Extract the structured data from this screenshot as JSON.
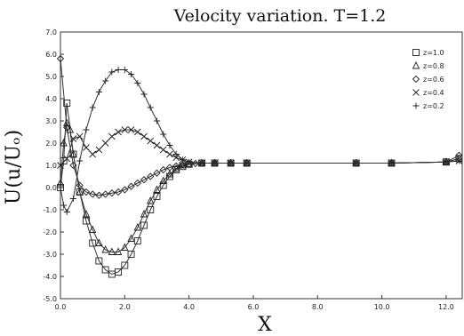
{
  "chart_data": {
    "type": "line",
    "title": "Velocity variation. T=1.2",
    "xlabel": "X",
    "ylabel": "U(u/Uₒ)",
    "xlim": [
      0,
      12.5
    ],
    "ylim": [
      -5,
      7
    ],
    "xticks": [
      0,
      2,
      4,
      6,
      8,
      10,
      12
    ],
    "xtick_labels": [
      "0.0",
      "2.0",
      "4.0",
      "6.0",
      "8.0",
      "10.0",
      "12.0"
    ],
    "yticks": [
      -5,
      -4,
      -3,
      -2,
      -1,
      0,
      1,
      2,
      3,
      4,
      5,
      6,
      7
    ],
    "ytick_labels": [
      "-5.0",
      "-4.0",
      "-3.0",
      "-2.0",
      "-1.0",
      "0.0",
      "1.0",
      "2.0",
      "3.0",
      "4.0",
      "5.0",
      "6.0",
      "7.0"
    ],
    "grid": false,
    "legend_position": "top-right",
    "series": [
      {
        "name": "z=1.0",
        "marker": "square",
        "x": [
          0.0,
          0.1,
          0.2,
          0.4,
          0.6,
          0.8,
          1.0,
          1.2,
          1.4,
          1.6,
          1.8,
          2.0,
          2.2,
          2.4,
          2.6,
          2.8,
          3.0,
          3.2,
          3.4,
          3.6,
          3.8,
          4.0,
          4.4,
          4.8,
          5.3,
          5.8,
          9.2,
          10.3,
          12.0,
          12.4
        ],
        "y": [
          0.0,
          1.2,
          3.8,
          1.5,
          -0.2,
          -1.5,
          -2.5,
          -3.3,
          -3.7,
          -3.9,
          -3.8,
          -3.5,
          -3.0,
          -2.4,
          -1.7,
          -1.0,
          -0.4,
          0.1,
          0.5,
          0.8,
          0.95,
          1.05,
          1.1,
          1.1,
          1.1,
          1.1,
          1.1,
          1.1,
          1.15,
          1.3
        ]
      },
      {
        "name": "z=0.8",
        "marker": "triangle",
        "x": [
          0.0,
          0.1,
          0.2,
          0.3,
          0.4,
          0.6,
          0.8,
          1.0,
          1.2,
          1.4,
          1.6,
          1.8,
          2.0,
          2.2,
          2.4,
          2.6,
          2.8,
          3.0,
          3.2,
          3.4,
          3.6,
          3.8,
          4.0,
          4.4,
          4.8,
          5.3,
          5.8,
          9.2,
          10.3,
          12.0,
          12.4
        ],
        "y": [
          0.2,
          2.0,
          2.9,
          2.6,
          1.5,
          -0.2,
          -1.2,
          -1.9,
          -2.5,
          -2.8,
          -2.9,
          -2.9,
          -2.7,
          -2.3,
          -1.8,
          -1.2,
          -0.6,
          -0.1,
          0.3,
          0.6,
          0.85,
          1.0,
          1.05,
          1.1,
          1.1,
          1.1,
          1.1,
          1.1,
          1.1,
          1.15,
          1.3
        ]
      },
      {
        "name": "z=0.6",
        "marker": "diamond",
        "x": [
          0.0,
          0.2,
          0.4,
          0.6,
          0.8,
          1.0,
          1.2,
          1.4,
          1.6,
          1.8,
          2.0,
          2.2,
          2.4,
          2.6,
          2.8,
          3.0,
          3.2,
          3.4,
          3.6,
          3.8,
          4.0,
          4.2,
          4.4,
          4.8,
          5.3,
          5.8,
          9.2,
          10.3,
          12.0,
          12.4
        ],
        "y": [
          5.8,
          2.7,
          1.0,
          0.1,
          -0.2,
          -0.3,
          -0.35,
          -0.3,
          -0.25,
          -0.2,
          -0.1,
          0.05,
          0.2,
          0.35,
          0.5,
          0.65,
          0.8,
          0.9,
          0.97,
          1.02,
          1.05,
          1.08,
          1.1,
          1.1,
          1.1,
          1.1,
          1.1,
          1.1,
          1.15,
          1.45
        ]
      },
      {
        "name": "z=0.4",
        "marker": "x",
        "x": [
          0.0,
          0.2,
          0.4,
          0.6,
          0.8,
          1.0,
          1.2,
          1.4,
          1.6,
          1.8,
          2.0,
          2.2,
          2.4,
          2.6,
          2.8,
          3.0,
          3.2,
          3.4,
          3.6,
          3.8,
          4.0,
          4.4,
          4.8,
          5.3,
          5.8,
          9.2,
          10.3,
          12.0,
          12.4
        ],
        "y": [
          1.0,
          1.3,
          2.2,
          2.3,
          1.8,
          1.5,
          1.7,
          2.0,
          2.3,
          2.5,
          2.6,
          2.6,
          2.5,
          2.3,
          2.1,
          1.9,
          1.7,
          1.5,
          1.35,
          1.25,
          1.15,
          1.1,
          1.1,
          1.1,
          1.1,
          1.1,
          1.1,
          1.15,
          1.2
        ]
      },
      {
        "name": "z=0.2",
        "marker": "plus",
        "x": [
          0.0,
          0.1,
          0.2,
          0.4,
          0.6,
          0.8,
          1.0,
          1.2,
          1.4,
          1.6,
          1.8,
          2.0,
          2.2,
          2.4,
          2.6,
          2.8,
          3.0,
          3.2,
          3.4,
          3.6,
          3.8,
          4.0,
          4.4,
          4.8,
          5.3,
          5.8,
          9.2,
          10.3,
          12.0,
          12.4
        ],
        "y": [
          0.0,
          -0.8,
          -1.1,
          -0.5,
          1.2,
          2.6,
          3.6,
          4.3,
          4.8,
          5.2,
          5.3,
          5.3,
          5.1,
          4.7,
          4.2,
          3.6,
          3.0,
          2.4,
          1.9,
          1.5,
          1.25,
          1.15,
          1.1,
          1.1,
          1.1,
          1.1,
          1.1,
          1.1,
          1.15,
          1.2
        ]
      }
    ]
  }
}
